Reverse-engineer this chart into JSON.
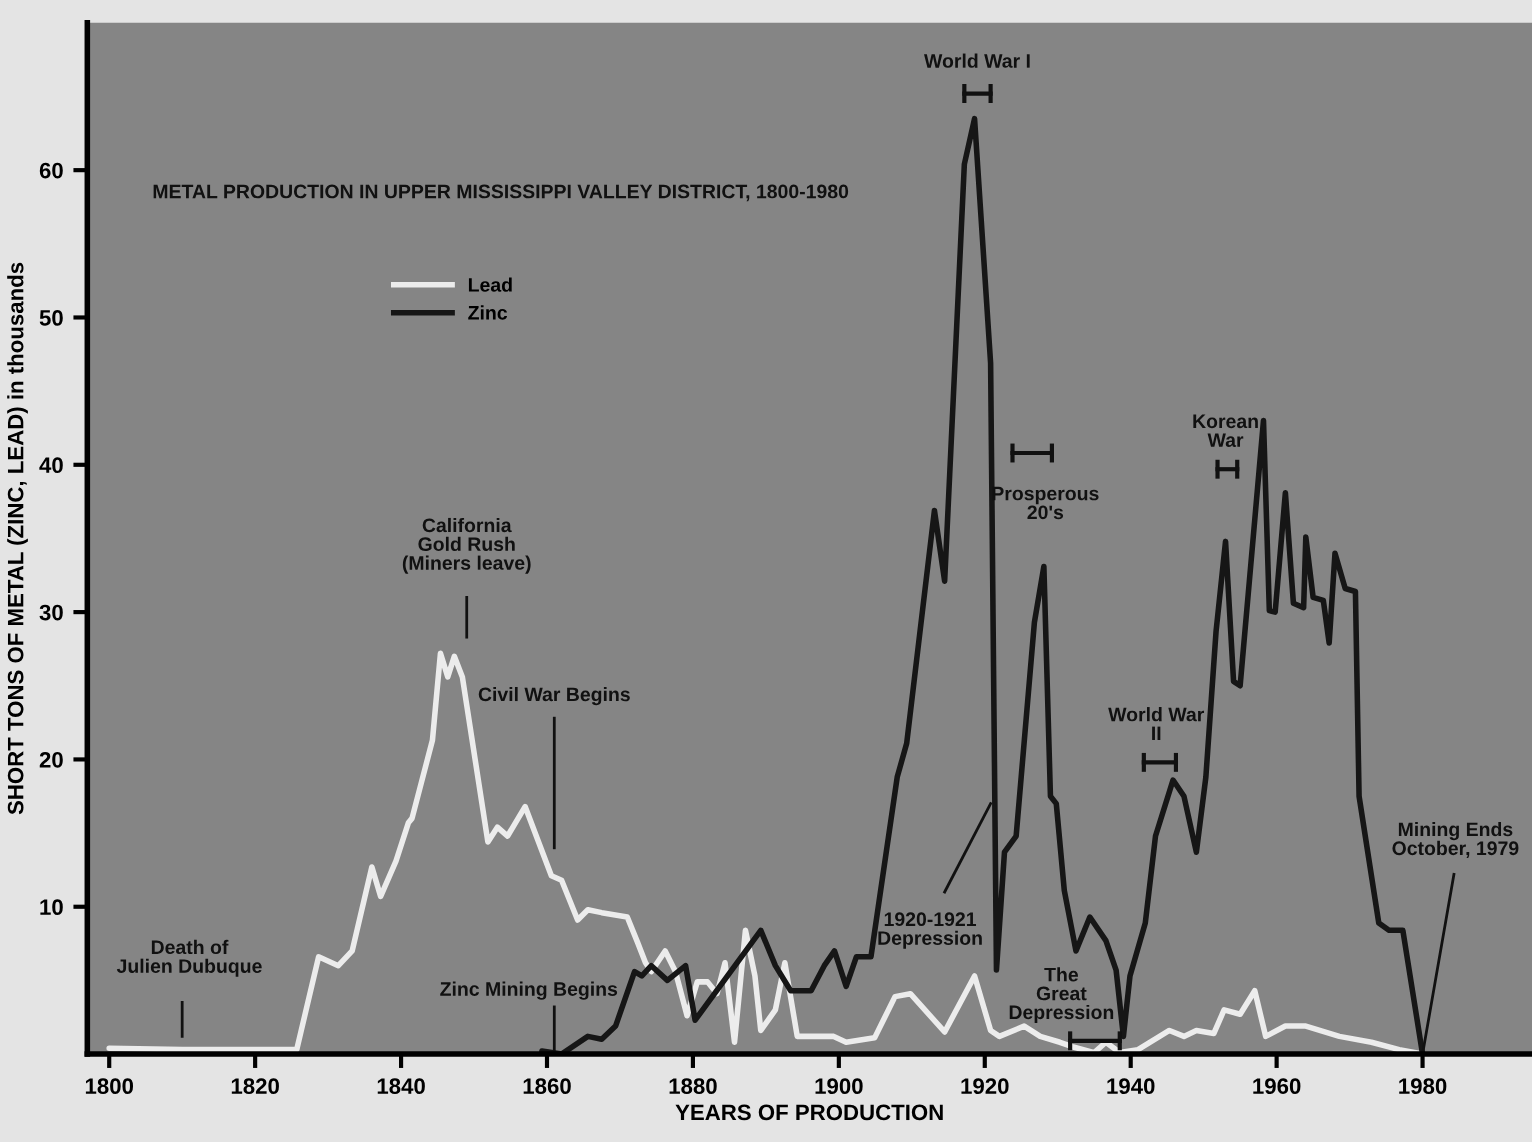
{
  "chart_data": {
    "type": "line",
    "title": "METAL PRODUCTION IN UPPER MISSISSIPPI VALLEY DISTRICT, 1800-1980",
    "xlabel": "YEARS OF PRODUCTION",
    "ylabel": "SHORT TONS OF METAL (ZINC, LEAD) in thousands",
    "series": [
      {
        "name": "Lead",
        "color": "#ececec",
        "x": [
          1800,
          1810,
          1820,
          1825.7,
          1828.7,
          1831.4,
          1833.3,
          1836,
          1837.2,
          1839.3,
          1841,
          1841.5,
          1844.3,
          1845.4,
          1846.4,
          1847.3,
          1848.4,
          1851.9,
          1853.2,
          1854.6,
          1857,
          1860.6,
          1862,
          1864.2,
          1865.6,
          1867.5,
          1871,
          1872.4,
          1873.5,
          1874.3,
          1876.2,
          1877.6,
          1879.2,
          1880.6,
          1882,
          1883.3,
          1884.4,
          1885.7,
          1887.2,
          1888.5,
          1889.3,
          1891.3,
          1892.6,
          1894.3,
          1899.3,
          1901,
          1904.9,
          1907.7,
          1909.8,
          1914.5,
          1918.6,
          1920.8,
          1922,
          1925.4,
          1927.6,
          1930.3,
          1932,
          1935,
          1936.6,
          1938.5,
          1941,
          1945.3,
          1947.3,
          1949,
          1951.4,
          1952.8,
          1955,
          1957,
          1958.5,
          1961.2,
          1964,
          1968.6,
          1973,
          1976.8,
          1980
        ],
        "values": [
          0.4,
          0.3,
          0.3,
          0.3,
          6.6,
          6.0,
          7.0,
          12.7,
          10.7,
          13.1,
          15.7,
          16,
          21.3,
          27.2,
          25.6,
          27.0,
          25.6,
          14.4,
          15.4,
          14.8,
          16.8,
          12.1,
          11.8,
          9.1,
          9.8,
          9.6,
          9.3,
          7.6,
          6.2,
          5.6,
          7.0,
          5.6,
          2.6,
          4.9,
          4.9,
          4.1,
          6.2,
          0.8,
          8.4,
          5.3,
          1.6,
          3.0,
          6.2,
          1.2,
          1.2,
          0.8,
          1.1,
          3.9,
          4.1,
          1.5,
          5.3,
          1.6,
          1.2,
          1.9,
          1.2,
          0.8,
          0.5,
          0.1,
          0.8,
          0.1,
          0.3,
          1.6,
          1.2,
          1.6,
          1.4,
          3.0,
          2.7,
          4.3,
          1.2,
          1.9,
          1.9,
          1.2,
          0.8,
          0.3,
          0
        ]
      },
      {
        "name": "Zinc",
        "color": "#161616",
        "x": [
          1859.3,
          1862,
          1865.6,
          1867.5,
          1869.4,
          1872,
          1873,
          1874.3,
          1876.5,
          1879,
          1880.3,
          1889.3,
          1891.3,
          1893.4,
          1896.2,
          1898,
          1899.4,
          1901,
          1902.4,
          1904.4,
          1908,
          1909.3,
          1913.1,
          1914.5,
          1917.2,
          1918.6,
          1920.8,
          1921.6,
          1922.7,
          1924.3,
          1926.8,
          1928.1,
          1929,
          1929.8,
          1930.9,
          1932.5,
          1934.4,
          1936.6,
          1938,
          1939,
          1939.9,
          1942,
          1943.4,
          1945.8,
          1947.3,
          1949,
          1950.3,
          1951.7,
          1953,
          1954.1,
          1955,
          1958.2,
          1959,
          1959.8,
          1961.2,
          1962.3,
          1963.7,
          1964,
          1965,
          1966.4,
          1967.2,
          1968,
          1969.4,
          1970.8,
          1971.3,
          1974,
          1975.4,
          1977.3,
          1980
        ],
        "values": [
          0.2,
          0,
          1.2,
          1.0,
          1.9,
          5.6,
          5.3,
          6.0,
          5.0,
          6.0,
          2.3,
          8.4,
          6.0,
          4.3,
          4.3,
          6.0,
          7.0,
          4.6,
          6.6,
          6.6,
          18.8,
          21.1,
          36.9,
          32.1,
          60.4,
          63.5,
          46.9,
          5.7,
          13.7,
          14.8,
          29.3,
          33.1,
          17.5,
          17.0,
          11.1,
          7.0,
          9.3,
          7.7,
          5.7,
          1.2,
          5.3,
          8.9,
          14.8,
          18.6,
          17.5,
          13.7,
          18.8,
          28.7,
          34.8,
          25.3,
          25.0,
          43.0,
          30.1,
          30,
          38.1,
          30.6,
          30.3,
          35.1,
          31.0,
          30.8,
          27.9,
          34.0,
          31.6,
          31.4,
          17.5,
          8.9,
          8.4,
          8.4,
          0
        ]
      }
    ],
    "xlim": [
      1797,
      1995
    ],
    "ylim": [
      0,
      70
    ],
    "xticks": [
      1800,
      1820,
      1840,
      1860,
      1880,
      1900,
      1920,
      1940,
      1960,
      1980
    ],
    "yticks": [
      10,
      20,
      30,
      40,
      50,
      60
    ],
    "grid": false,
    "legend": "top left",
    "marker": "none",
    "line_style": "solid",
    "annotations": [
      "Death of\nJulien Dubuque",
      "California\nGold Rush\n(Miners leave)",
      "Civil War Begins",
      "Zinc Mining Begins",
      {
        "text": "1920-1921\nDepression",
        "x": 1920.8,
        "y": 17
      },
      {
        "text": "Mining Ends\nOctober, 1979",
        "x": 1980,
        "y": 0
      },
      "World War I",
      "Prosperous\n20's",
      "The\nGreat\nDepression",
      "World War\nII",
      "Korean\nWar"
    ]
  }
}
